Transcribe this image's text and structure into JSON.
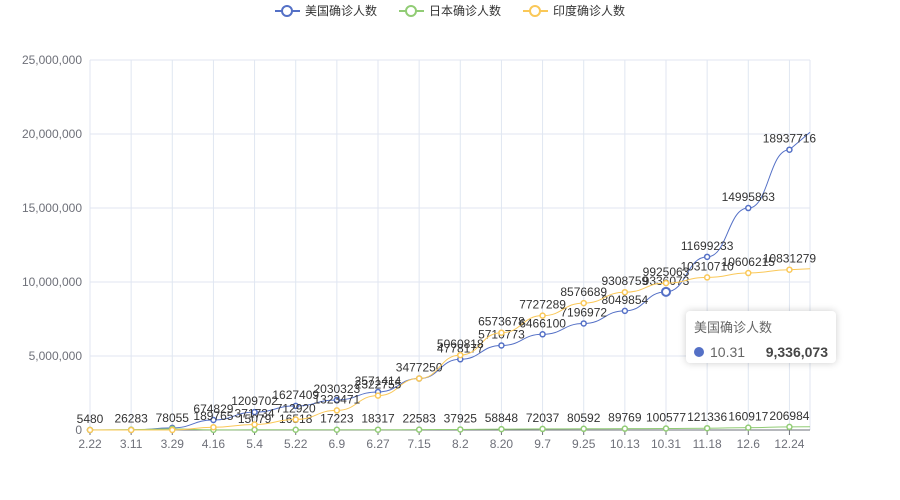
{
  "legend": [
    {
      "label": "美国确诊人数",
      "color": "#5470c6"
    },
    {
      "label": "日本确诊人数",
      "color": "#91cc75"
    },
    {
      "label": "印度确诊人数",
      "color": "#fac858"
    }
  ],
  "tooltip": {
    "title": "美国确诊人数",
    "category": "10.31",
    "value": "9,336,073",
    "color": "#5470c6"
  },
  "chart_data": {
    "type": "line",
    "categories": [
      "2.22",
      "3.11",
      "3.29",
      "4.16",
      "5.4",
      "5.22",
      "6.9",
      "6.27",
      "7.15",
      "8.2",
      "8.20",
      "9.7",
      "9.25",
      "10.13",
      "10.31",
      "11.18",
      "12.6",
      "12.24"
    ],
    "ylim": [
      0,
      25000000
    ],
    "yticks": [
      "0",
      "5,000,000",
      "10,000,000",
      "15,000,000",
      "20,000,000",
      "25,000,000"
    ],
    "grid": true,
    "legend_position": "top-center",
    "series": [
      {
        "name": "美国确诊人数",
        "color": "#5470c6",
        "values": [
          35,
          1301,
          140886,
          674829,
          1209702,
          1627409,
          2030323,
          2571414,
          3477250,
          4778177,
          5710773,
          6466100,
          7196972,
          8049854,
          9336073,
          11699233,
          14995863,
          18937716
        ],
        "labels": [
          "",
          "",
          "",
          "674829",
          "1209702",
          "1627409",
          "2030323",
          "2571414",
          "3477250",
          "4778177",
          "5710773",
          "6466100",
          "7196972",
          "8049854",
          "9336073",
          "11699233",
          "14995863",
          "18937716"
        ]
      },
      {
        "name": "日本确诊人数",
        "color": "#91cc75",
        "values": [
          5480,
          26283,
          78055,
          8100,
          15079,
          16518,
          17223,
          18317,
          22583,
          37925,
          58848,
          72037,
          80592,
          89769,
          100577,
          121336,
          160917,
          206984
        ],
        "labels": [
          "5480",
          "26283",
          "78055",
          "",
          "15079",
          "16518",
          "17223",
          "18317",
          "22583",
          "37925",
          "58848",
          "72037",
          "80592",
          "89769",
          "100577",
          "121336",
          "160917",
          "206984"
        ]
      },
      {
        "name": "印度确诊人数",
        "color": "#fac858",
        "values": [
          3,
          62,
          1071,
          189765,
          371734,
          712920,
          1323471,
          2322755,
          3477250,
          5060818,
          6573678,
          7727289,
          8576689,
          9308759,
          9925063,
          10310710,
          10606215,
          10831279
        ],
        "labels": [
          "",
          "",
          "",
          "189765",
          "371734",
          "712920",
          "1323471",
          "2322755",
          "",
          "5060818",
          "6573678",
          "7727289",
          "8576689",
          "9308759",
          "9925063",
          "10310710",
          "10606215",
          "10831279"
        ]
      }
    ]
  }
}
